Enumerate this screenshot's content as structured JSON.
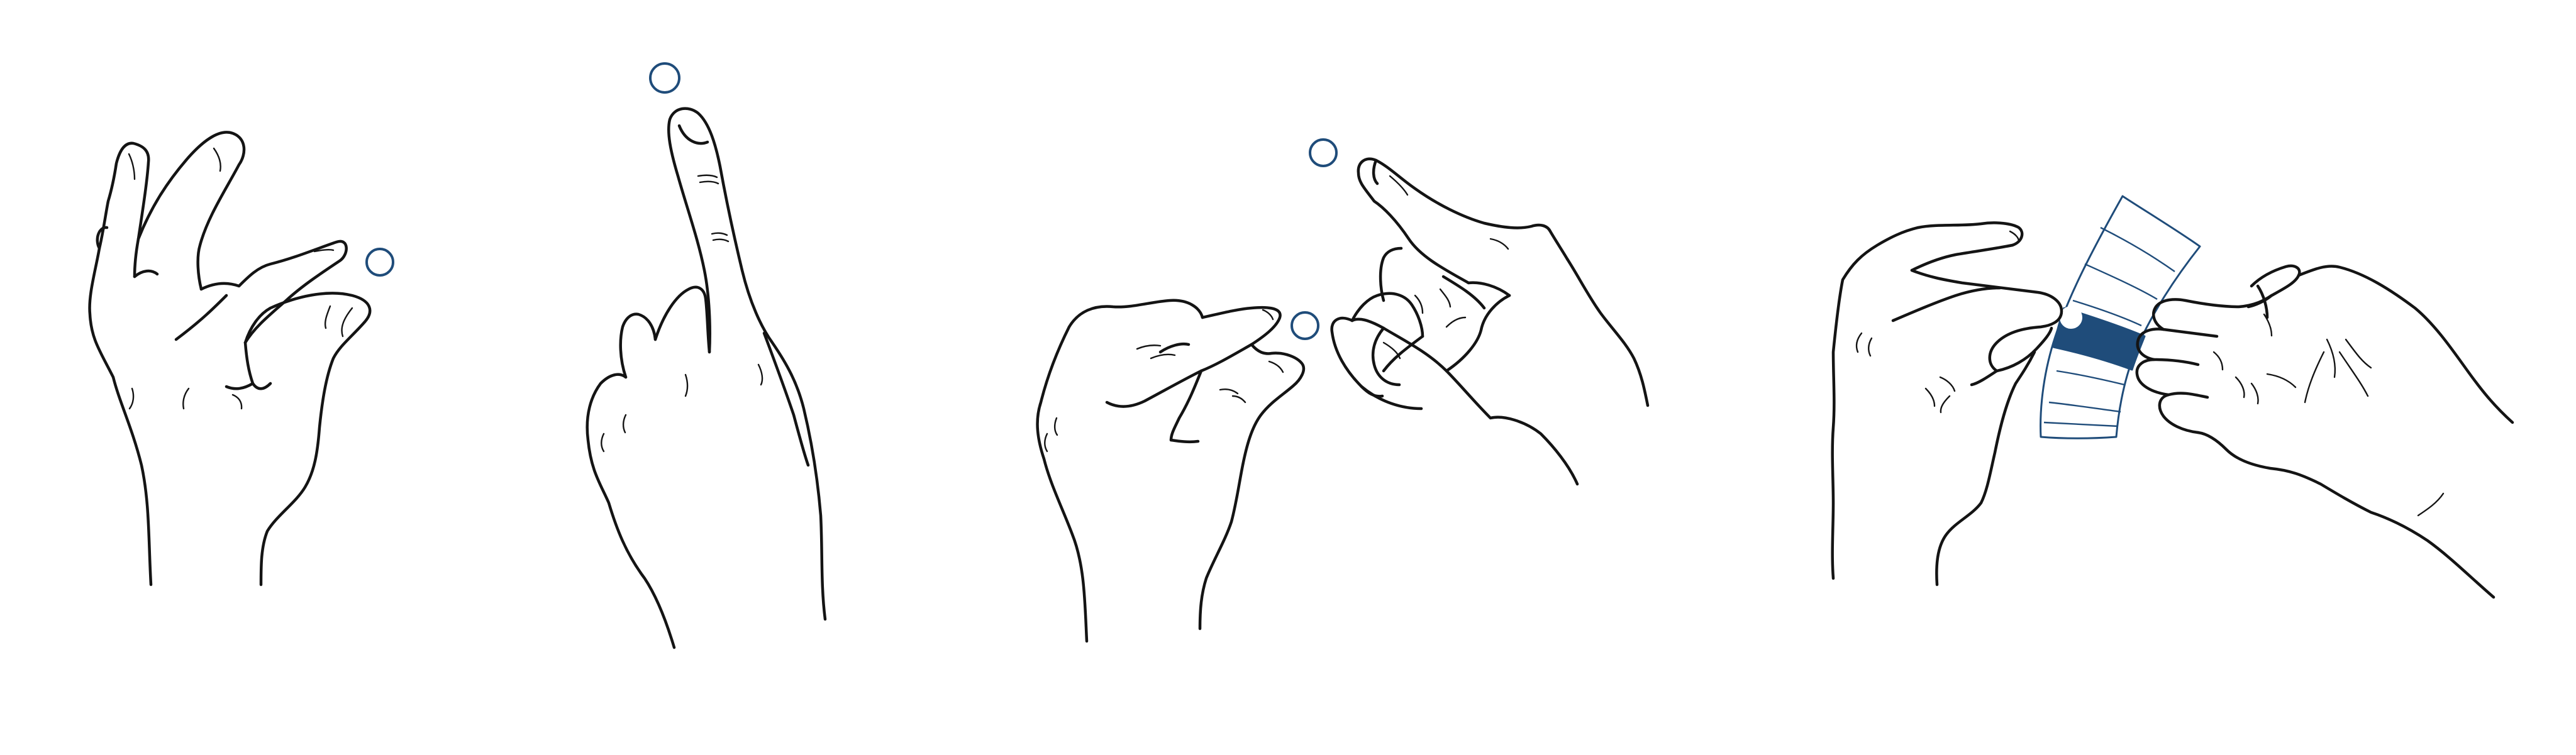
{
  "figure": {
    "panels": [
      {
        "name": "pinch-spread",
        "touch_points": 1
      },
      {
        "name": "single-finger-point",
        "touch_points": 1
      },
      {
        "name": "two-hand-pinch",
        "touch_points": 2
      },
      {
        "name": "slide-on-strip",
        "touch_points": 1
      }
    ]
  },
  "colors": {
    "line": "#141414",
    "accent": "#1f4c7a",
    "fill": "#ffffff"
  }
}
